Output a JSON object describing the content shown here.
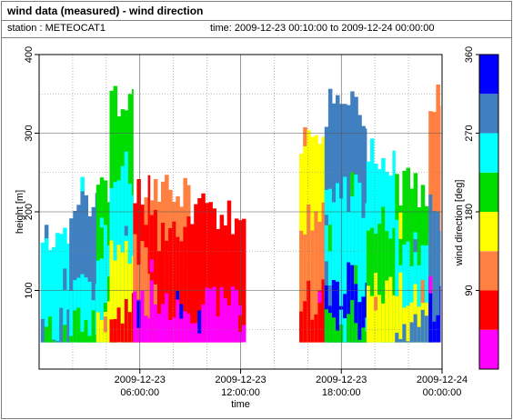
{
  "header": {
    "title": "wind data (measured) - wind direction",
    "station": "station : METEOCAT1",
    "time_range": "time: 2009-12-23 00:10:00 to 2009-12-24 00:00:00"
  },
  "chart_data": {
    "type": "heatmap",
    "xlabel": "time",
    "ylabel": "height [m]",
    "colorbar_label": "wind direction [deg]",
    "x_range": [
      "2009-12-23 00:10:00",
      "2009-12-24 00:00:00"
    ],
    "ylim": [
      0,
      400
    ],
    "y_ticks": [
      100,
      200,
      300,
      400
    ],
    "x_ticks": [
      {
        "line1": "2009-12-23",
        "line2": "06:00:00"
      },
      {
        "line1": "2009-12-23",
        "line2": "12:00:00"
      },
      {
        "line1": "2009-12-23",
        "line2": "18:00:00"
      },
      {
        "line1": "2009-12-24",
        "line2": "00:00:00"
      }
    ],
    "colorbar": {
      "min": 0,
      "max": 360,
      "ticks": [
        90,
        180,
        270,
        360
      ],
      "bins": [
        {
          "from": 0,
          "to": 45,
          "color": "#ff00ff"
        },
        {
          "from": 45,
          "to": 90,
          "color": "#ff0000"
        },
        {
          "from": 90,
          "to": 135,
          "color": "#ff8040"
        },
        {
          "from": 135,
          "to": 180,
          "color": "#ffff00"
        },
        {
          "from": 180,
          "to": 225,
          "color": "#00dd00"
        },
        {
          "from": 225,
          "to": 270,
          "color": "#00ffff"
        },
        {
          "from": 270,
          "to": 315,
          "color": "#4080c0"
        },
        {
          "from": 315,
          "to": 360,
          "color": "#0000ff"
        }
      ]
    },
    "grid": true,
    "data_gap": [
      "2009-12-23 12:20:00",
      "2009-12-23 15:30:00"
    ],
    "segments": [
      {
        "t": [
          0.1,
          1.8
        ],
        "bands": [
          {
            "top": 150,
            "bin": 5
          },
          {
            "top": 65,
            "bin": 6
          },
          {
            "top": 40,
            "bin": 4
          }
        ]
      },
      {
        "t": [
          1.8,
          3.4
        ],
        "bands": [
          {
            "top": 210,
            "bin": 6
          },
          {
            "top": 110,
            "bin": 5
          },
          {
            "top": 55,
            "bin": 4
          }
        ]
      },
      {
        "t": [
          3.4,
          4.2
        ],
        "bands": [
          {
            "top": 240,
            "bin": 4
          },
          {
            "top": 160,
            "bin": 5
          },
          {
            "top": 90,
            "bin": 3
          }
        ]
      },
      {
        "t": [
          4.2,
          5.6
        ],
        "bands": [
          {
            "top": 340,
            "bin": 4
          },
          {
            "top": 250,
            "bin": 5
          },
          {
            "top": 140,
            "bin": 3
          },
          {
            "top": 80,
            "bin": 1
          }
        ]
      },
      {
        "t": [
          5.6,
          6.6
        ],
        "bands": [
          {
            "top": 230,
            "bin": 1
          },
          {
            "top": 150,
            "bin": 2
          },
          {
            "top": 70,
            "bin": 0
          }
        ]
      },
      {
        "t": [
          6.6,
          9.0
        ],
        "bands": [
          {
            "top": 235,
            "bin": 2
          },
          {
            "top": 180,
            "bin": 1
          },
          {
            "top": 90,
            "bin": 0
          }
        ]
      },
      {
        "t": [
          9.0,
          12.3
        ],
        "bands": [
          {
            "top": 200,
            "bin": 1
          },
          {
            "top": 80,
            "bin": 0
          }
        ]
      },
      {
        "t": [
          15.5,
          17.0
        ],
        "bands": [
          {
            "top": 300,
            "bin": 3
          },
          {
            "top": 200,
            "bin": 2
          },
          {
            "top": 90,
            "bin": 1
          }
        ]
      },
      {
        "t": [
          17.0,
          19.5
        ],
        "bands": [
          {
            "top": 330,
            "bin": 6
          },
          {
            "top": 220,
            "bin": 5
          },
          {
            "top": 110,
            "bin": 7
          },
          {
            "top": 60,
            "bin": 4
          }
        ]
      },
      {
        "t": [
          19.5,
          21.2
        ],
        "bands": [
          {
            "top": 270,
            "bin": 5
          },
          {
            "top": 190,
            "bin": 4
          },
          {
            "top": 100,
            "bin": 3
          }
        ]
      },
      {
        "t": [
          21.2,
          23.2
        ],
        "bands": [
          {
            "top": 230,
            "bin": 4
          },
          {
            "top": 160,
            "bin": 5
          },
          {
            "top": 100,
            "bin": 3
          },
          {
            "top": 55,
            "bin": 6
          }
        ]
      },
      {
        "t": [
          23.2,
          23.9
        ],
        "bands": [
          {
            "top": 340,
            "bin": 2
          },
          {
            "top": 200,
            "bin": 6
          },
          {
            "top": 90,
            "bin": 7
          }
        ]
      }
    ]
  }
}
